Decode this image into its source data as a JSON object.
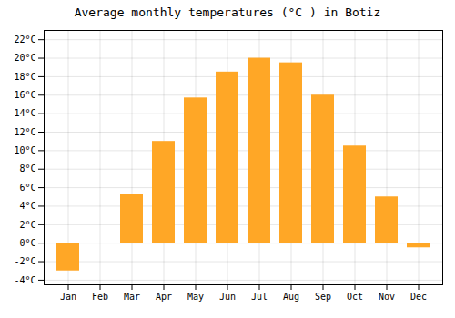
{
  "chart_data": {
    "type": "bar",
    "title": "Average monthly temperatures (°C ) in Botiz",
    "categories": [
      "Jan",
      "Feb",
      "Mar",
      "Apr",
      "May",
      "Jun",
      "Jul",
      "Aug",
      "Sep",
      "Oct",
      "Nov",
      "Dec"
    ],
    "values": [
      -3.0,
      0.0,
      5.3,
      11.0,
      15.7,
      18.5,
      20.0,
      19.5,
      16.0,
      10.5,
      5.0,
      -0.5
    ],
    "color": "#FFA726",
    "ylim": [
      -4.5,
      23
    ],
    "yticks": [
      {
        "value": -4,
        "label": "-4°C"
      },
      {
        "value": -2,
        "label": "-2°C"
      },
      {
        "value": 0,
        "label": "0°C"
      },
      {
        "value": 2,
        "label": "2°C"
      },
      {
        "value": 4,
        "label": "4°C"
      },
      {
        "value": 6,
        "label": "6°C"
      },
      {
        "value": 8,
        "label": "8°C"
      },
      {
        "value": 10,
        "label": "10°C"
      },
      {
        "value": 12,
        "label": "12°C"
      },
      {
        "value": 14,
        "label": "14°C"
      },
      {
        "value": 16,
        "label": "16°C"
      },
      {
        "value": 18,
        "label": "18°C"
      },
      {
        "value": 20,
        "label": "20°C"
      },
      {
        "value": 22,
        "label": "22°C"
      }
    ],
    "grid": true
  }
}
